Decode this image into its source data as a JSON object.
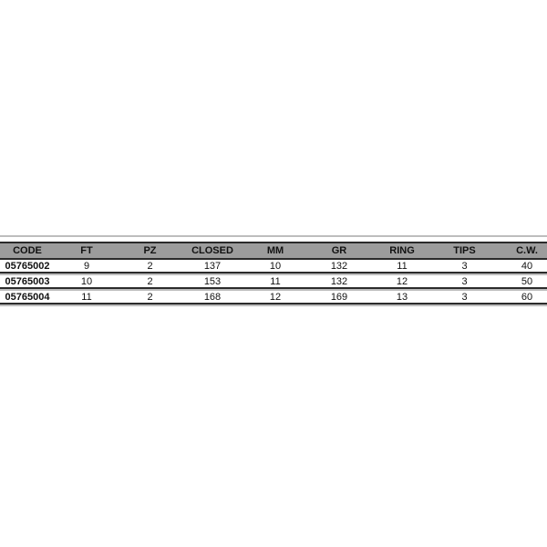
{
  "table": {
    "columns": [
      "CODE",
      "FT",
      "PZ",
      "CLOSED",
      "MM",
      "GR",
      "RING",
      "TIPS",
      "C.W."
    ],
    "rows": [
      [
        "05765002",
        "9",
        "2",
        "137",
        "10",
        "132",
        "11",
        "3",
        "40"
      ],
      [
        "05765003",
        "10",
        "2",
        "153",
        "11",
        "132",
        "12",
        "3",
        "50"
      ],
      [
        "05765004",
        "11",
        "2",
        "168",
        "12",
        "169",
        "13",
        "3",
        "60"
      ]
    ],
    "colors": {
      "header_background": "#9c9c9c",
      "dark_line": "#2b2b2b",
      "light_line": "#bdbdbd",
      "text": "#111111",
      "page_background": "#ffffff"
    }
  },
  "chart_data": {
    "type": "table",
    "title": "",
    "columns": [
      "CODE",
      "FT",
      "PZ",
      "CLOSED",
      "MM",
      "GR",
      "RING",
      "TIPS",
      "C.W."
    ],
    "rows": [
      [
        "05765002",
        9,
        2,
        137,
        10,
        132,
        11,
        3,
        40
      ],
      [
        "05765003",
        10,
        2,
        153,
        11,
        132,
        12,
        3,
        50
      ],
      [
        "05765004",
        11,
        2,
        168,
        12,
        169,
        13,
        3,
        60
      ]
    ],
    "layout_hints": {
      "header_style": "gray-bar-bold",
      "row_separators": "dark-rule-with-light-shadow",
      "alignment": "center",
      "bold_columns": [
        "CODE"
      ]
    }
  }
}
